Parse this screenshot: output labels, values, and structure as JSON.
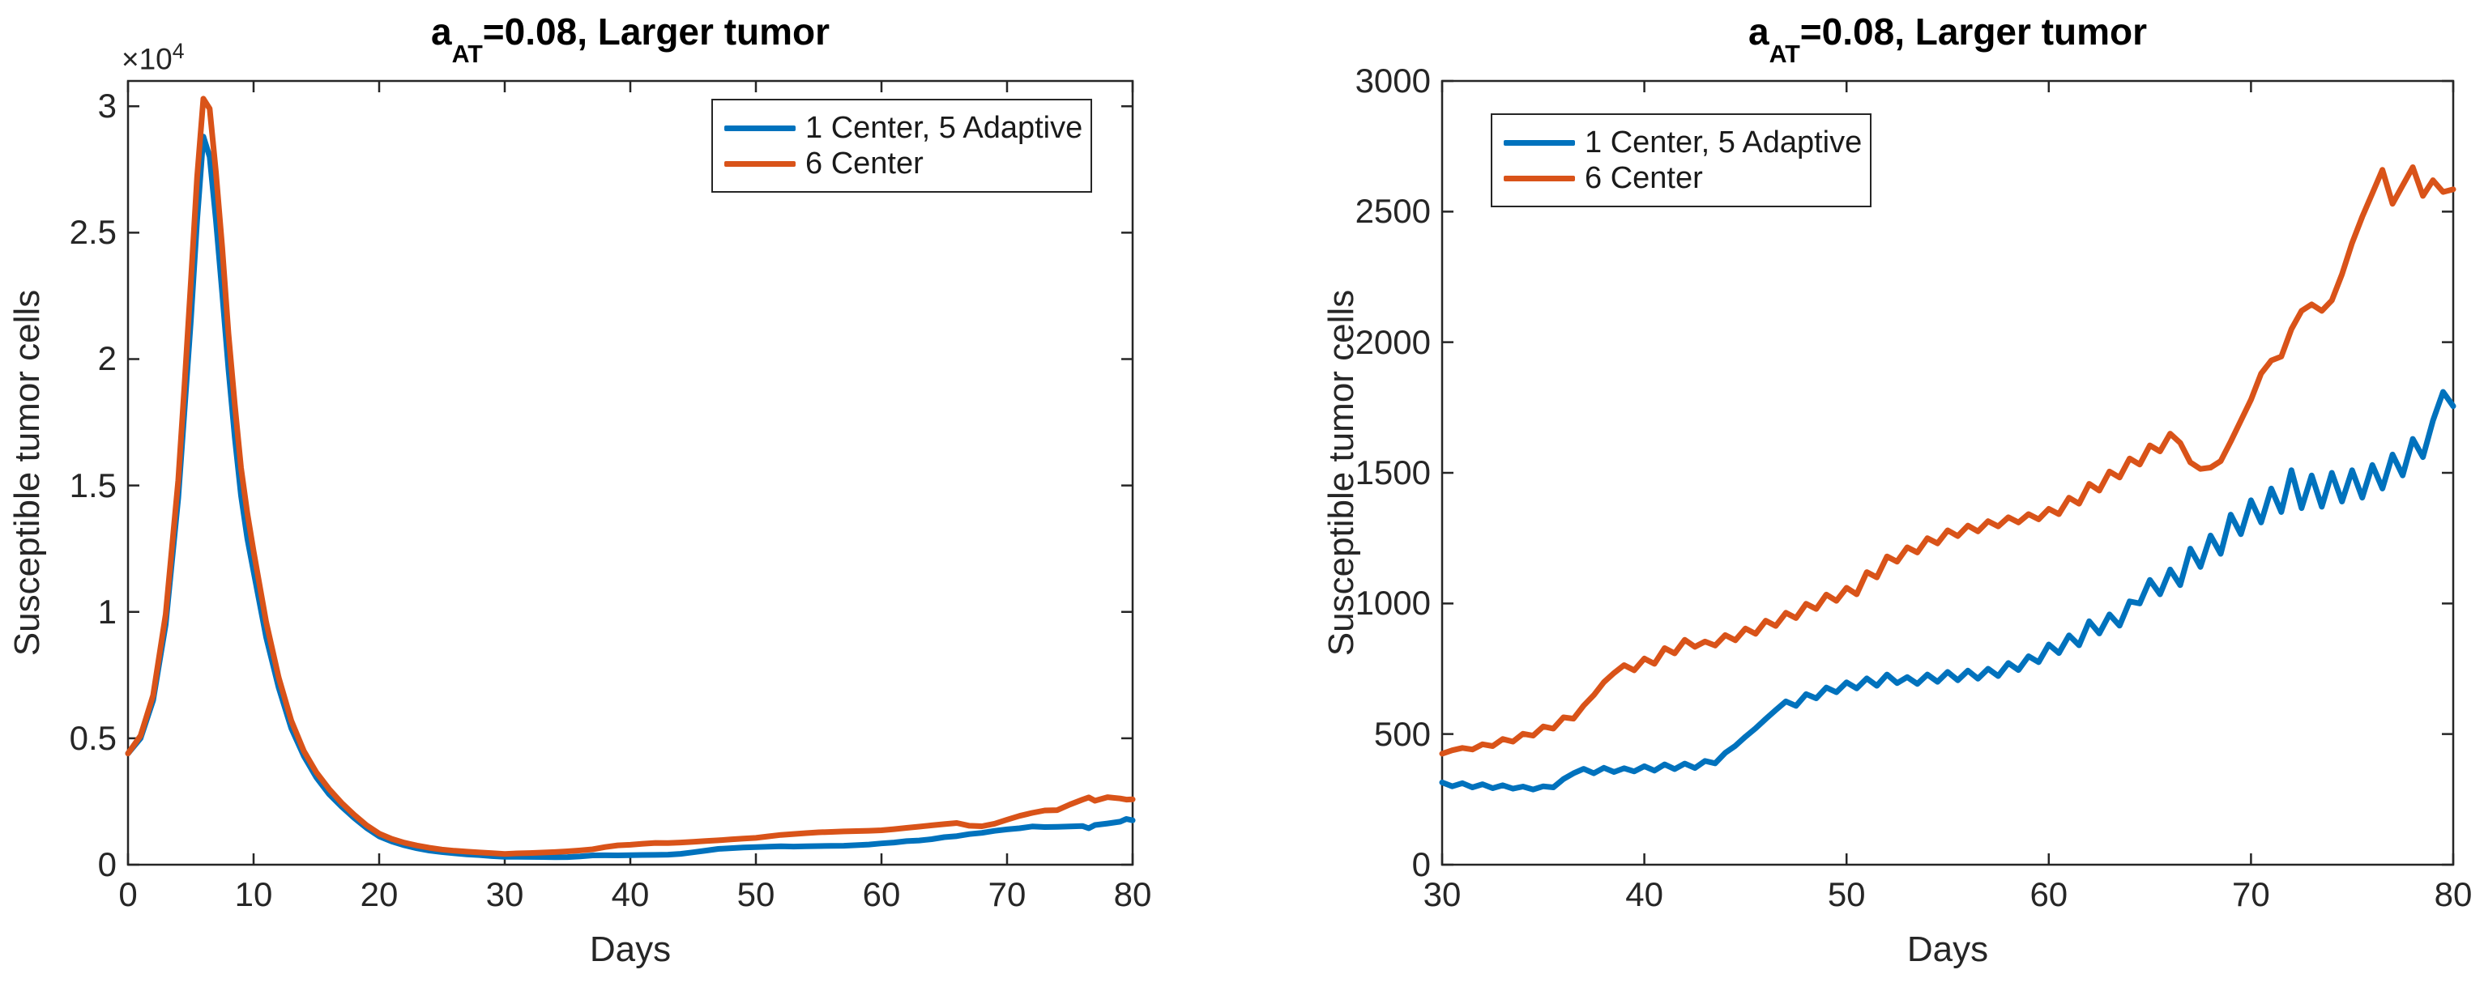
{
  "colors": {
    "background": "#ffffff",
    "axis": "#262626",
    "title_text": "#000000",
    "series_blue": "#0072BD",
    "series_orange": "#D95319"
  },
  "chart_data": [
    {
      "type": "line",
      "title": {
        "prefix": "a",
        "subscript": "AT",
        "suffix": "=0.08, Larger tumor"
      },
      "xlabel": "Days",
      "ylabel": "Susceptible tumor cells",
      "xlim": [
        0,
        80
      ],
      "ylim": [
        0,
        31000
      ],
      "xticks": [
        0,
        10,
        20,
        30,
        40,
        50,
        60,
        70,
        80
      ],
      "xtick_labels": [
        "0",
        "10",
        "20",
        "30",
        "40",
        "50",
        "60",
        "70",
        "80"
      ],
      "yticks": [
        0,
        5000,
        10000,
        15000,
        20000,
        25000,
        30000
      ],
      "ytick_labels": [
        "0",
        "0.5",
        "1",
        "1.5",
        "2",
        "2.5",
        "3"
      ],
      "y_offset_label": {
        "base": "×10",
        "exponent": "4"
      },
      "grid": false,
      "legend_position": "inside-top-left",
      "series": [
        {
          "name": "1 Center, 5 Adaptive",
          "color": "#0072BD",
          "x": [
            0,
            1,
            2,
            3,
            4,
            4.5,
            5,
            5.5,
            6,
            6.5,
            7,
            7.5,
            8,
            8.5,
            9,
            9.5,
            10,
            11,
            12,
            13,
            14,
            15,
            16,
            17,
            18,
            19,
            20,
            21,
            22,
            23,
            24,
            25,
            26,
            27,
            28,
            29,
            30,
            31,
            32,
            33,
            34,
            35,
            36,
            37,
            38,
            39,
            40,
            41,
            42,
            43,
            44,
            45,
            46,
            47,
            48,
            49,
            50,
            51,
            52,
            53,
            54,
            55,
            56,
            57,
            58,
            59,
            60,
            61,
            62,
            63,
            64,
            65,
            66,
            67,
            68,
            69,
            70,
            71,
            72,
            73,
            74,
            75,
            76,
            76.5,
            77,
            78,
            79,
            79.5,
            80
          ],
          "y": [
            4400,
            5000,
            6500,
            9500,
            14500,
            18000,
            21500,
            25500,
            28800,
            28000,
            25500,
            22600,
            19600,
            16900,
            14600,
            12900,
            11600,
            9000,
            7000,
            5400,
            4300,
            3450,
            2800,
            2300,
            1850,
            1450,
            1120,
            920,
            770,
            650,
            560,
            500,
            450,
            410,
            380,
            340,
            315,
            312,
            308,
            304,
            299,
            300,
            328,
            367,
            371,
            369,
            377,
            384,
            387,
            397,
            428,
            490,
            558,
            625,
            653,
            678,
            698,
            713,
            728,
            718,
            728,
            738,
            743,
            750,
            772,
            798,
            843,
            878,
            932,
            958,
            1008,
            1090,
            1130,
            1210,
            1260,
            1340,
            1395,
            1440,
            1510,
            1490,
            1500,
            1510,
            1530,
            1440,
            1570,
            1630,
            1700,
            1810,
            1755
          ]
        },
        {
          "name": "6 Center",
          "color": "#D95319",
          "x": [
            0,
            1,
            2,
            3,
            4,
            4.5,
            5,
            5.5,
            6,
            6.5,
            7,
            7.5,
            8,
            8.5,
            9,
            9.5,
            10,
            11,
            12,
            13,
            14,
            15,
            16,
            17,
            18,
            19,
            20,
            21,
            22,
            23,
            24,
            25,
            26,
            27,
            28,
            29,
            30,
            31,
            32,
            33,
            34,
            35,
            36,
            37,
            38,
            39,
            40,
            41,
            42,
            43,
            44,
            45,
            46,
            47,
            48,
            49,
            50,
            51,
            52,
            53,
            54,
            55,
            56,
            57,
            58,
            59,
            60,
            61,
            62,
            63,
            64,
            65,
            66,
            67,
            68,
            69,
            70,
            71,
            72,
            73,
            74,
            75,
            76,
            76.5,
            77,
            78,
            79,
            79.5,
            80
          ],
          "y": [
            4400,
            5100,
            6700,
            9900,
            15200,
            19000,
            23000,
            27200,
            30300,
            29900,
            27400,
            24400,
            21000,
            18200,
            15700,
            13900,
            12400,
            9600,
            7400,
            5700,
            4500,
            3650,
            3000,
            2450,
            1980,
            1560,
            1230,
            1020,
            870,
            760,
            670,
            600,
            550,
            515,
            485,
            455,
            425,
            447,
            461,
            481,
            501,
            529,
            564,
            609,
            699,
            764,
            789,
            829,
            861,
            854,
            879,
            904,
            934,
            964,
            999,
            1034,
            1060,
            1120,
            1180,
            1215,
            1250,
            1280,
            1298,
            1315,
            1330,
            1342,
            1362,
            1405,
            1458,
            1505,
            1555,
            1605,
            1650,
            1540,
            1520,
            1620,
            1780,
            1930,
            2050,
            2145,
            2160,
            2380,
            2570,
            2660,
            2530,
            2670,
            2620,
            2575,
            2585
          ]
        }
      ]
    },
    {
      "type": "line",
      "title": {
        "prefix": "a",
        "subscript": "AT",
        "suffix": "=0.08, Larger tumor"
      },
      "xlabel": "Days",
      "ylabel": "Susceptible tumor cells",
      "xlim": [
        30,
        80
      ],
      "ylim": [
        0,
        3000
      ],
      "xticks": [
        30,
        40,
        50,
        60,
        70,
        80
      ],
      "xtick_labels": [
        "30",
        "40",
        "50",
        "60",
        "70",
        "80"
      ],
      "yticks": [
        0,
        500,
        1000,
        1500,
        2000,
        2500,
        3000
      ],
      "ytick_labels": [
        "0",
        "500",
        "1000",
        "1500",
        "2000",
        "2500",
        "3000"
      ],
      "grid": false,
      "legend_position": "inside-top-left",
      "series": [
        {
          "name": "1 Center, 5 Adaptive",
          "color": "#0072BD",
          "x": [
            30,
            30.5,
            31,
            31.5,
            32,
            32.5,
            33,
            33.5,
            34,
            34.5,
            35,
            35.5,
            36,
            36.5,
            37,
            37.5,
            38,
            38.5,
            39,
            39.5,
            40,
            40.5,
            41,
            41.5,
            42,
            42.5,
            43,
            43.5,
            44,
            44.5,
            45,
            45.5,
            46,
            46.5,
            47,
            47.5,
            48,
            48.5,
            49,
            49.5,
            50,
            50.5,
            51,
            51.5,
            52,
            52.5,
            53,
            53.5,
            54,
            54.5,
            55,
            55.5,
            56,
            56.5,
            57,
            57.5,
            58,
            58.5,
            59,
            59.5,
            60,
            60.5,
            61,
            61.5,
            62,
            62.5,
            63,
            63.5,
            64,
            64.5,
            65,
            65.5,
            66,
            66.5,
            67,
            67.5,
            68,
            68.5,
            69,
            69.5,
            70,
            70.5,
            71,
            71.5,
            72,
            72.5,
            73,
            73.5,
            74,
            74.5,
            75,
            75.5,
            76,
            76.5,
            77,
            77.5,
            78,
            78.5,
            79,
            79.5,
            80
          ],
          "y": [
            315,
            300,
            312,
            296,
            308,
            293,
            304,
            291,
            299,
            288,
            300,
            296,
            328,
            350,
            367,
            350,
            371,
            355,
            369,
            357,
            377,
            360,
            384,
            366,
            387,
            370,
            397,
            388,
            428,
            455,
            490,
            522,
            558,
            592,
            625,
            608,
            653,
            637,
            678,
            660,
            698,
            675,
            713,
            685,
            728,
            695,
            718,
            692,
            728,
            700,
            738,
            706,
            743,
            712,
            750,
            722,
            772,
            745,
            798,
            775,
            843,
            810,
            878,
            840,
            932,
            885,
            958,
            915,
            1008,
            1000,
            1090,
            1035,
            1130,
            1070,
            1210,
            1140,
            1260,
            1190,
            1340,
            1265,
            1395,
            1310,
            1440,
            1350,
            1510,
            1365,
            1490,
            1370,
            1500,
            1390,
            1510,
            1405,
            1530,
            1440,
            1570,
            1490,
            1630,
            1560,
            1700,
            1810,
            1755
          ]
        },
        {
          "name": "6 Center",
          "color": "#D95319",
          "x": [
            30,
            30.5,
            31,
            31.5,
            32,
            32.5,
            33,
            33.5,
            34,
            34.5,
            35,
            35.5,
            36,
            36.5,
            37,
            37.5,
            38,
            38.5,
            39,
            39.5,
            40,
            40.5,
            41,
            41.5,
            42,
            42.5,
            43,
            43.5,
            44,
            44.5,
            45,
            45.5,
            46,
            46.5,
            47,
            47.5,
            48,
            48.5,
            49,
            49.5,
            50,
            50.5,
            51,
            51.5,
            52,
            52.5,
            53,
            53.5,
            54,
            54.5,
            55,
            55.5,
            56,
            56.5,
            57,
            57.5,
            58,
            58.5,
            59,
            59.5,
            60,
            60.5,
            61,
            61.5,
            62,
            62.5,
            63,
            63.5,
            64,
            64.5,
            65,
            65.5,
            66,
            66.5,
            67,
            67.5,
            68,
            68.5,
            69,
            69.5,
            70,
            70.5,
            71,
            71.5,
            72,
            72.5,
            73,
            73.5,
            74,
            74.5,
            75,
            75.5,
            76,
            76.5,
            77,
            77.5,
            78,
            78.5,
            79,
            79.5,
            80
          ],
          "y": [
            425,
            438,
            447,
            441,
            461,
            454,
            481,
            471,
            501,
            494,
            529,
            521,
            564,
            559,
            609,
            649,
            699,
            734,
            764,
            744,
            789,
            769,
            829,
            809,
            861,
            834,
            854,
            839,
            879,
            859,
            904,
            884,
            934,
            914,
            964,
            944,
            999,
            979,
            1034,
            1010,
            1060,
            1035,
            1120,
            1100,
            1180,
            1160,
            1215,
            1195,
            1250,
            1230,
            1280,
            1258,
            1298,
            1276,
            1315,
            1295,
            1330,
            1310,
            1342,
            1322,
            1362,
            1342,
            1405,
            1382,
            1458,
            1432,
            1505,
            1482,
            1555,
            1532,
            1605,
            1582,
            1650,
            1615,
            1540,
            1515,
            1520,
            1545,
            1620,
            1700,
            1780,
            1880,
            1930,
            1945,
            2050,
            2120,
            2145,
            2120,
            2160,
            2260,
            2380,
            2480,
            2570,
            2660,
            2530,
            2600,
            2670,
            2560,
            2620,
            2575,
            2585
          ]
        }
      ]
    }
  ]
}
